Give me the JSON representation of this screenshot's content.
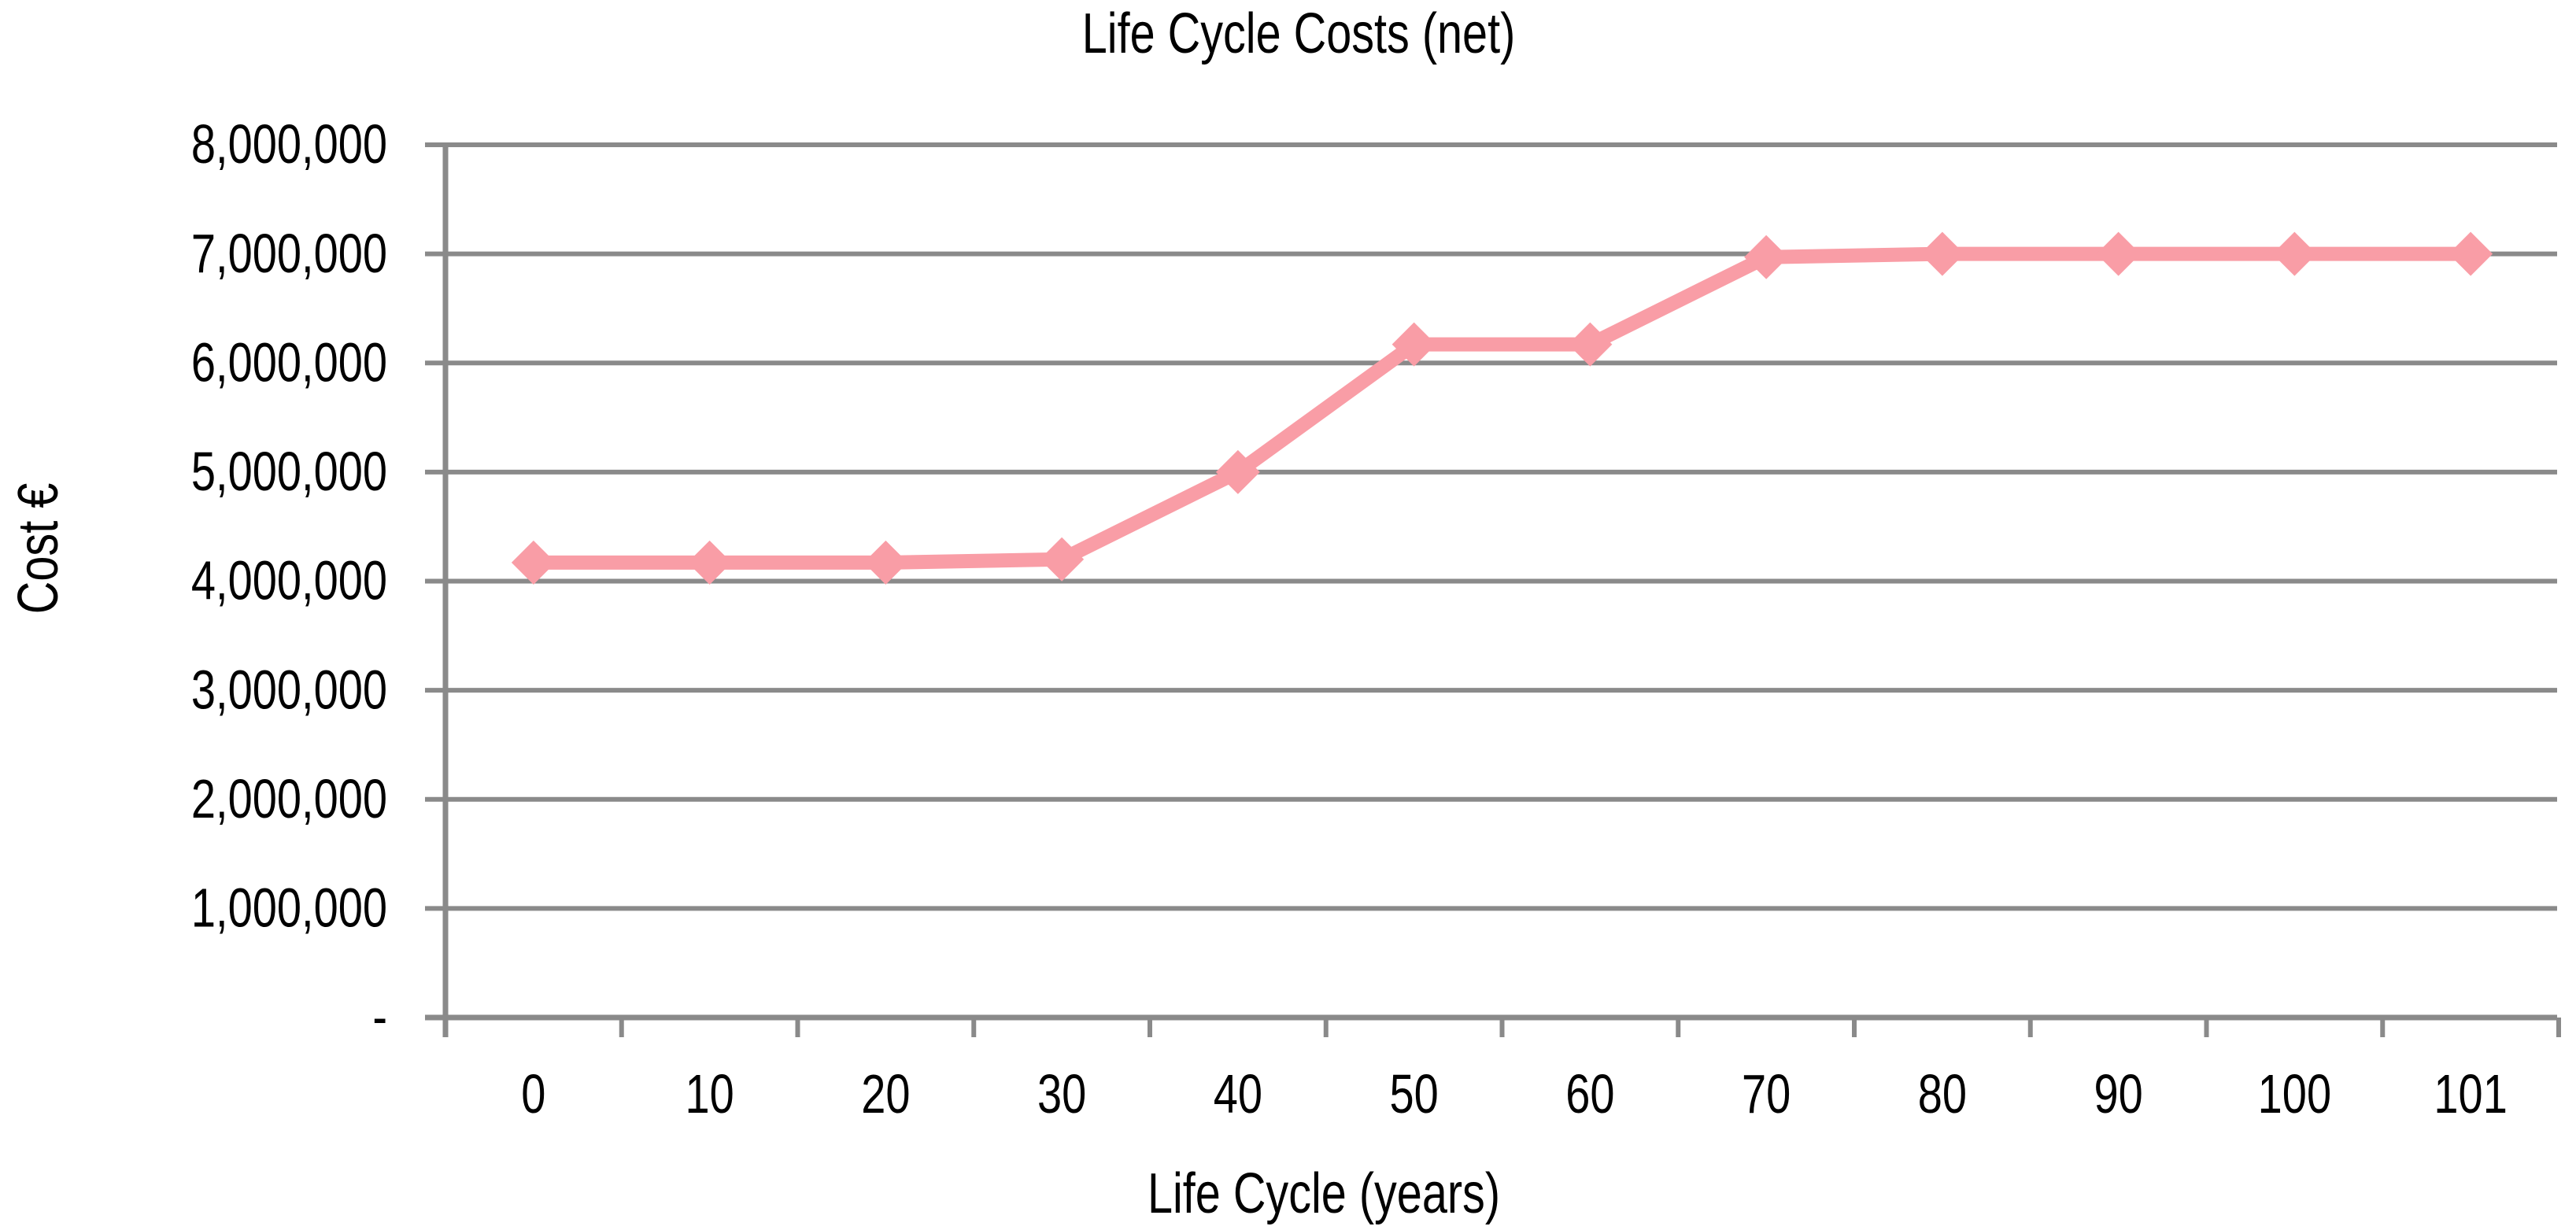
{
  "chart_data": {
    "type": "line",
    "title": "Life Cycle Costs (net)",
    "xlabel": "Life Cycle (years)",
    "ylabel": "Cost €",
    "categories": [
      "0",
      "10",
      "20",
      "30",
      "40",
      "50",
      "60",
      "70",
      "80",
      "90",
      "100",
      "101"
    ],
    "series": [
      {
        "name": "Life Cycle Costs (net)",
        "values": [
          4170000,
          4170000,
          4170000,
          4200000,
          5000000,
          6170000,
          6170000,
          6970000,
          7000000,
          7000000,
          7000000,
          7000000
        ]
      }
    ],
    "ylim": [
      0,
      8000000
    ],
    "ytick_step": 1000000,
    "ytick_labels": [
      "-",
      "1,000,000",
      "2,000,000",
      "3,000,000",
      "4,000,000",
      "5,000,000",
      "6,000,000",
      "7,000,000",
      "8,000,000"
    ],
    "grid": "horizontal-major",
    "legend_position": "none",
    "marker": "diamond",
    "colors": {
      "series_pink": "#F99DA6",
      "axis_gray": "#8A8A8A",
      "text_black": "#000000",
      "background": "#FFFFFF"
    }
  }
}
